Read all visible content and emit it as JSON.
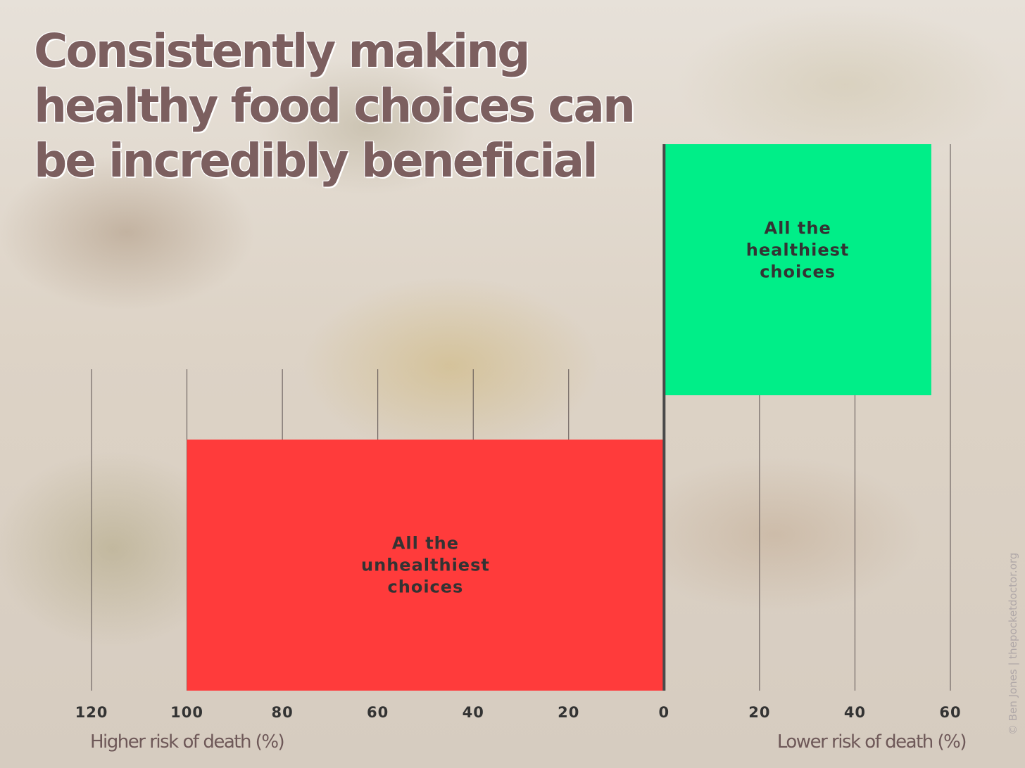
{
  "title": "Consistently making healthy food choices can be incredibly beneficial",
  "credit": "© Ben Jones | thepocketdoctor.org",
  "chart_data": {
    "type": "bar",
    "orientation": "horizontal",
    "xlabel_left": "Higher risk of death (%)",
    "xlabel_right": "Lower risk of death (%)",
    "x_ticks": [
      {
        "value": -120,
        "label": "120"
      },
      {
        "value": -100,
        "label": "100"
      },
      {
        "value": -80,
        "label": "80"
      },
      {
        "value": -60,
        "label": "60"
      },
      {
        "value": -40,
        "label": "40"
      },
      {
        "value": -20,
        "label": "20"
      },
      {
        "value": 0,
        "label": "0"
      },
      {
        "value": 20,
        "label": "20"
      },
      {
        "value": 40,
        "label": "40"
      },
      {
        "value": 60,
        "label": "60"
      }
    ],
    "xlim": [
      -120,
      60
    ],
    "grid": true,
    "bars": [
      {
        "label_lines": [
          "All the",
          "healthiest",
          "choices"
        ],
        "value": 56,
        "color": "#00ee88"
      },
      {
        "label_lines": [
          "All the",
          "unhealthiest",
          "choices"
        ],
        "value": -100,
        "color": "#ff3b3b"
      }
    ]
  }
}
